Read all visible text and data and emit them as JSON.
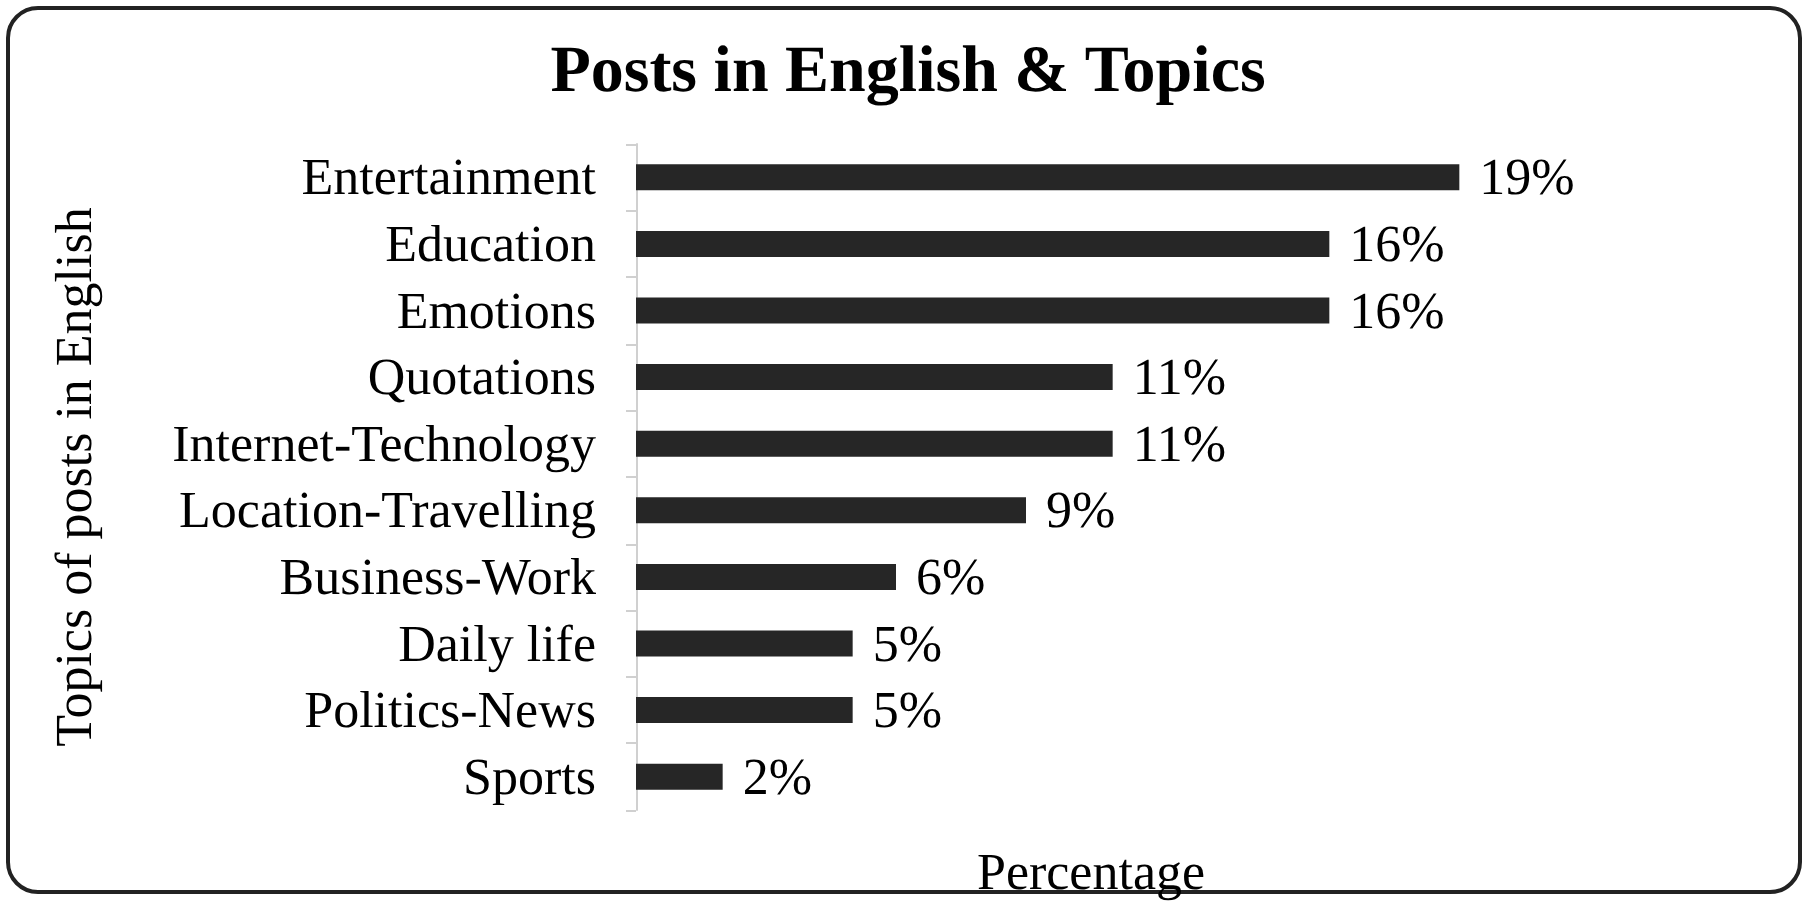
{
  "chart_data": {
    "type": "bar",
    "orientation": "horizontal",
    "title": "Posts in English & Topics",
    "xlabel": "Percentage",
    "ylabel": "Topics of posts in English",
    "categories": [
      "Entertainment",
      "Education",
      "Emotions",
      "Quotations",
      "Internet-Technology",
      "Location-Travelling",
      "Business-Work",
      "Daily life",
      "Politics-News",
      "Sports"
    ],
    "values": [
      19,
      16,
      16,
      11,
      11,
      9,
      6,
      5,
      5,
      2
    ],
    "value_labels": [
      "19%",
      "16%",
      "16%",
      "11%",
      "11%",
      "9%",
      "6%",
      "5%",
      "5%",
      "2%"
    ],
    "color": "#262626",
    "tick_labels": "y",
    "grid": false
  }
}
